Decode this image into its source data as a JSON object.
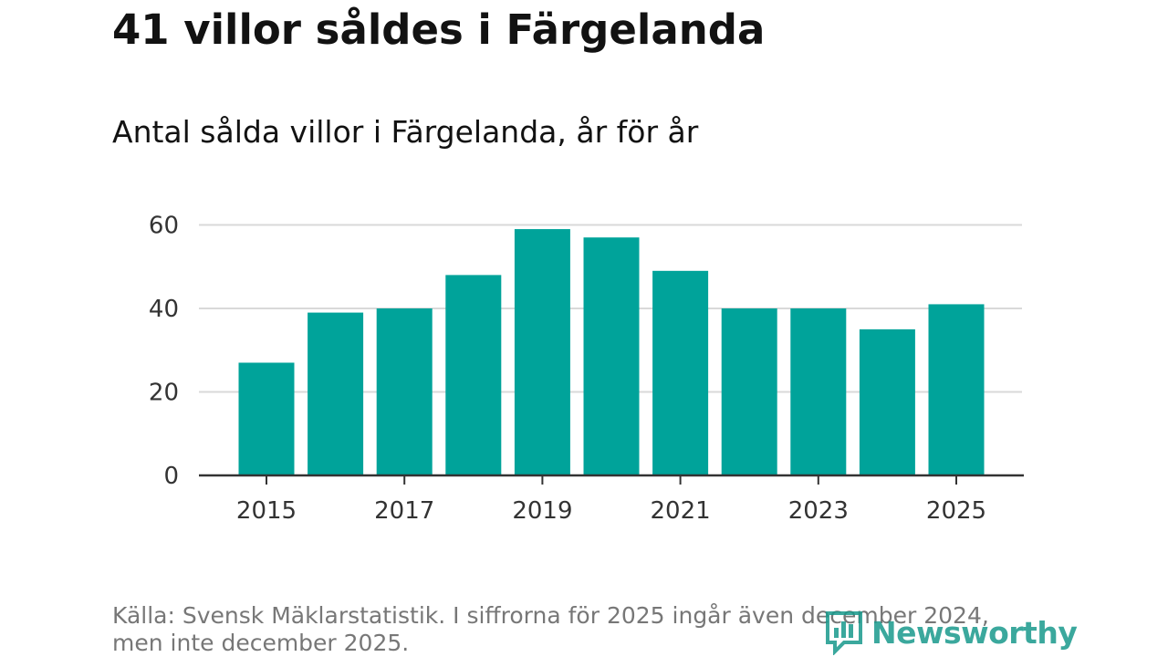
{
  "title": "41 villor såldes i Färgelanda",
  "subtitle": "Antal sålda villor i Färgelanda, år för år",
  "footer": {
    "line1": "Källa: Svensk Mäklarstatistik. I siffrorna för 2025 ingår även december 2024,",
    "line2": "men inte december 2025."
  },
  "logo": {
    "text": "Newsworthy",
    "icon": "newsworthy-logo-icon"
  },
  "colors": {
    "bar": "#00a39a",
    "grid": "#d9d9d9",
    "axis": "#333333",
    "text": "#121212",
    "muted": "#777777",
    "logo": "#1a9a8c"
  },
  "chart_data": {
    "type": "bar",
    "title": "Antal sålda villor i Färgelanda, år för år",
    "xlabel": "",
    "ylabel": "",
    "categories": [
      "2015",
      "2016",
      "2017",
      "2018",
      "2019",
      "2020",
      "2021",
      "2022",
      "2023",
      "2024",
      "2025"
    ],
    "values": [
      27,
      39,
      40,
      48,
      59,
      57,
      49,
      40,
      40,
      35,
      41
    ],
    "ylim": [
      0,
      60
    ],
    "yticks": [
      "0",
      "20",
      "40",
      "60"
    ],
    "xtick_labels": [
      "2015",
      "2017",
      "2019",
      "2021",
      "2023",
      "2025"
    ],
    "grid": true
  }
}
